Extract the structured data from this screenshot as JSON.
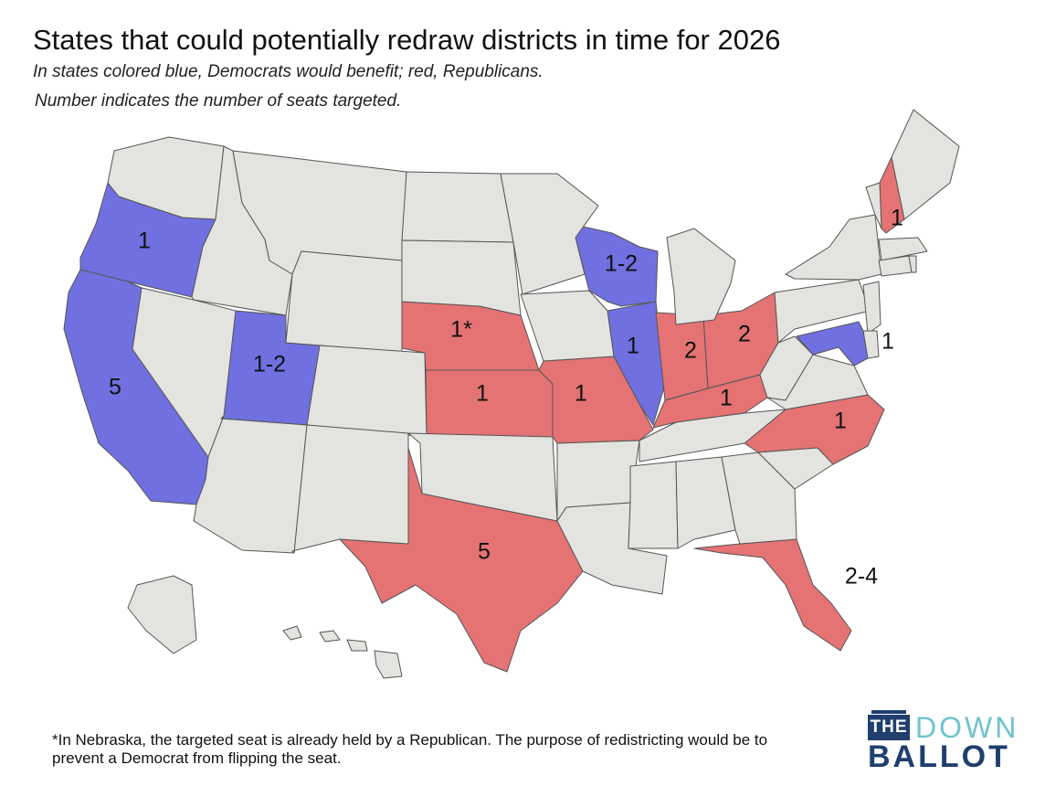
{
  "title": "States that could potentially redraw districts in time for 2026",
  "subtitle": "In states colored blue, Democrats would benefit; red, Republicans.",
  "subtitle2": "Number indicates the number of seats targeted.",
  "footnote": "*In Nebraska, the targeted seat is already held by a Republican. The purpose of redistricting would be to prevent a Democrat from flipping the seat.",
  "colors": {
    "democrat": "#7070e0",
    "republican": "#e57373",
    "neutral": "#e3e4e0",
    "border": "#555555"
  },
  "logo": {
    "box": "THE",
    "top": "DOWN",
    "bottom": "BALLOT"
  },
  "states": [
    {
      "abbr": "OR",
      "party": "D",
      "label": "1"
    },
    {
      "abbr": "CA",
      "party": "D",
      "label": "5"
    },
    {
      "abbr": "UT",
      "party": "D",
      "label": "1-2"
    },
    {
      "abbr": "NE",
      "party": "R",
      "label": "1*"
    },
    {
      "abbr": "KS",
      "party": "R",
      "label": "1"
    },
    {
      "abbr": "MO",
      "party": "R",
      "label": "1"
    },
    {
      "abbr": "TX",
      "party": "R",
      "label": "5"
    },
    {
      "abbr": "WI",
      "party": "D",
      "label": "1-2"
    },
    {
      "abbr": "IL",
      "party": "D",
      "label": "1"
    },
    {
      "abbr": "IN",
      "party": "R",
      "label": "2"
    },
    {
      "abbr": "OH",
      "party": "R",
      "label": "2"
    },
    {
      "abbr": "KY",
      "party": "R",
      "label": "1"
    },
    {
      "abbr": "NC",
      "party": "R",
      "label": "1"
    },
    {
      "abbr": "FL",
      "party": "R",
      "label": "2-4"
    },
    {
      "abbr": "MD",
      "party": "D",
      "label": "1"
    },
    {
      "abbr": "NH",
      "party": "R",
      "label": "1"
    },
    {
      "abbr": "WA",
      "party": "N"
    },
    {
      "abbr": "ID",
      "party": "N"
    },
    {
      "abbr": "MT",
      "party": "N"
    },
    {
      "abbr": "WY",
      "party": "N"
    },
    {
      "abbr": "NV",
      "party": "N"
    },
    {
      "abbr": "AZ",
      "party": "N"
    },
    {
      "abbr": "CO",
      "party": "N"
    },
    {
      "abbr": "NM",
      "party": "N"
    },
    {
      "abbr": "ND",
      "party": "N"
    },
    {
      "abbr": "SD",
      "party": "N"
    },
    {
      "abbr": "OK",
      "party": "N"
    },
    {
      "abbr": "MN",
      "party": "N"
    },
    {
      "abbr": "IA",
      "party": "N"
    },
    {
      "abbr": "AR",
      "party": "N"
    },
    {
      "abbr": "LA",
      "party": "N"
    },
    {
      "abbr": "MI",
      "party": "N"
    },
    {
      "abbr": "TN",
      "party": "N"
    },
    {
      "abbr": "MS",
      "party": "N"
    },
    {
      "abbr": "AL",
      "party": "N"
    },
    {
      "abbr": "GA",
      "party": "N"
    },
    {
      "abbr": "SC",
      "party": "N"
    },
    {
      "abbr": "WV",
      "party": "N"
    },
    {
      "abbr": "VA",
      "party": "N"
    },
    {
      "abbr": "PA",
      "party": "N"
    },
    {
      "abbr": "NY",
      "party": "N"
    },
    {
      "abbr": "VT",
      "party": "N"
    },
    {
      "abbr": "ME",
      "party": "N"
    },
    {
      "abbr": "MA",
      "party": "N"
    },
    {
      "abbr": "CT",
      "party": "N"
    },
    {
      "abbr": "RI",
      "party": "N"
    },
    {
      "abbr": "NJ",
      "party": "N"
    },
    {
      "abbr": "DE",
      "party": "N"
    },
    {
      "abbr": "AK",
      "party": "N"
    },
    {
      "abbr": "HI",
      "party": "N"
    }
  ]
}
